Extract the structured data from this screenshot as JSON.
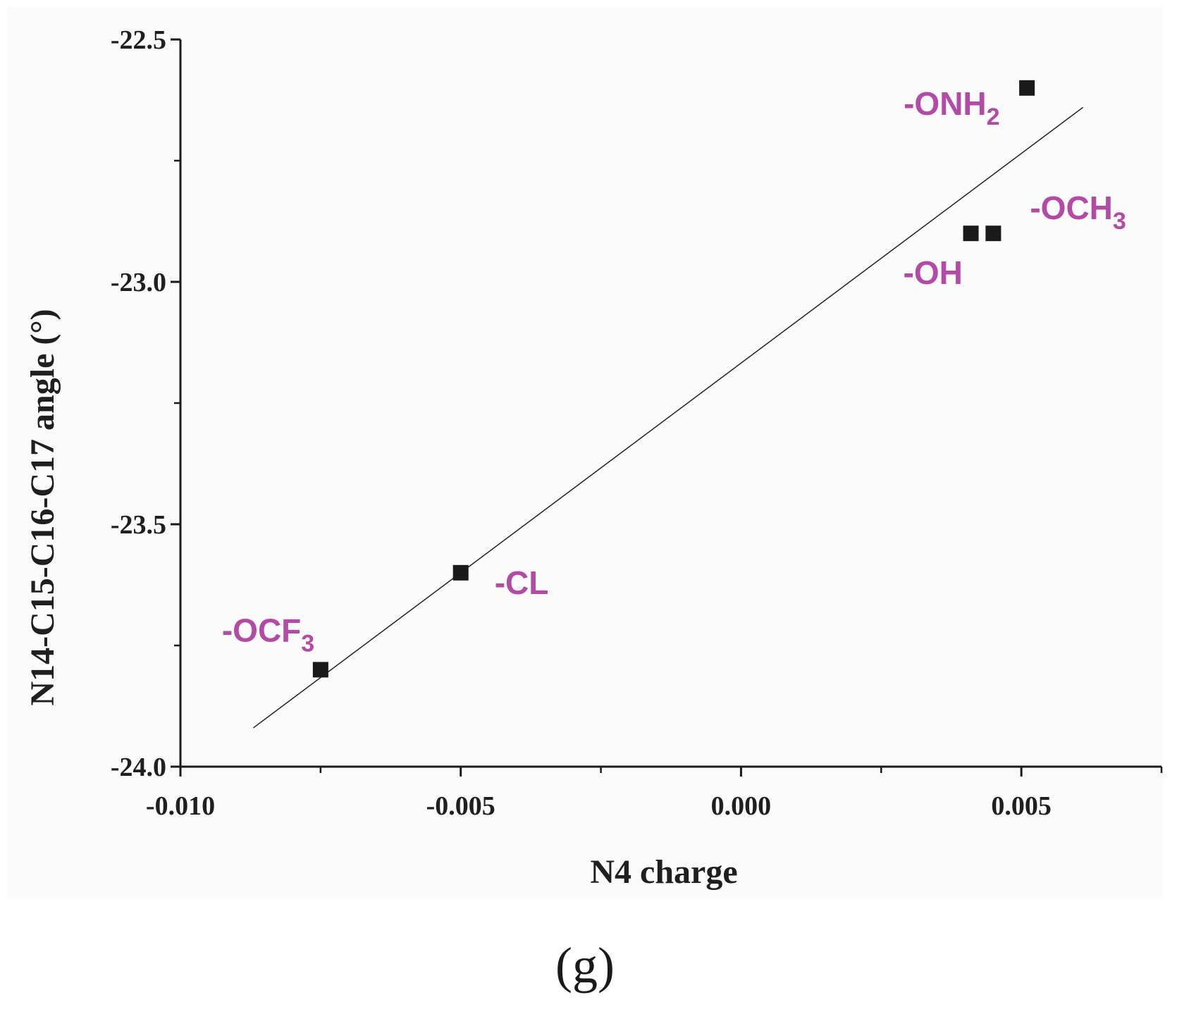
{
  "colors": {
    "label": "#b24aa6",
    "marker": "#1a1a1a",
    "axis": "#1a1a1a",
    "plot_bg": "#fbfbfb"
  },
  "chart_data": {
    "type": "scatter",
    "title": "",
    "xlabel": "N4 charge",
    "ylabel": "N14-C15-C16-C17 angle (°)",
    "xlim": [
      -0.01,
      0.0075
    ],
    "ylim": [
      -24.0,
      -22.5
    ],
    "xticks": [
      "-0.010",
      "-0.005",
      "0.000",
      "0.005"
    ],
    "xtick_values": [
      -0.01,
      -0.005,
      0.0,
      0.005
    ],
    "xminor_values": [
      -0.0075,
      -0.0025,
      0.0025,
      0.0075
    ],
    "yticks": [
      "-24.0",
      "-23.5",
      "-23.0",
      "-22.5"
    ],
    "ytick_values": [
      -24.0,
      -23.5,
      -23.0,
      -22.5
    ],
    "yminor_values": [
      -23.75,
      -23.25,
      -22.75
    ],
    "points": [
      {
        "label": "-OCF",
        "sub": "3",
        "x": -0.0075,
        "y": -23.8,
        "label_pos": "above-left"
      },
      {
        "label": "-CL",
        "sub": "",
        "x": -0.005,
        "y": -23.6,
        "label_pos": "right"
      },
      {
        "label": "-OH",
        "sub": "",
        "x": 0.0041,
        "y": -22.9,
        "label_pos": "below-left"
      },
      {
        "label": "-OCH",
        "sub": "3",
        "x": 0.0045,
        "y": -22.9,
        "label_pos": "above-right"
      },
      {
        "label": "-ONH",
        "sub": "2",
        "x": 0.0051,
        "y": -22.6,
        "label_pos": "left"
      }
    ],
    "fit_line": {
      "x": [
        -0.0087,
        0.0061
      ],
      "y": [
        -23.92,
        -22.64
      ]
    }
  },
  "panel_label": "(g)"
}
